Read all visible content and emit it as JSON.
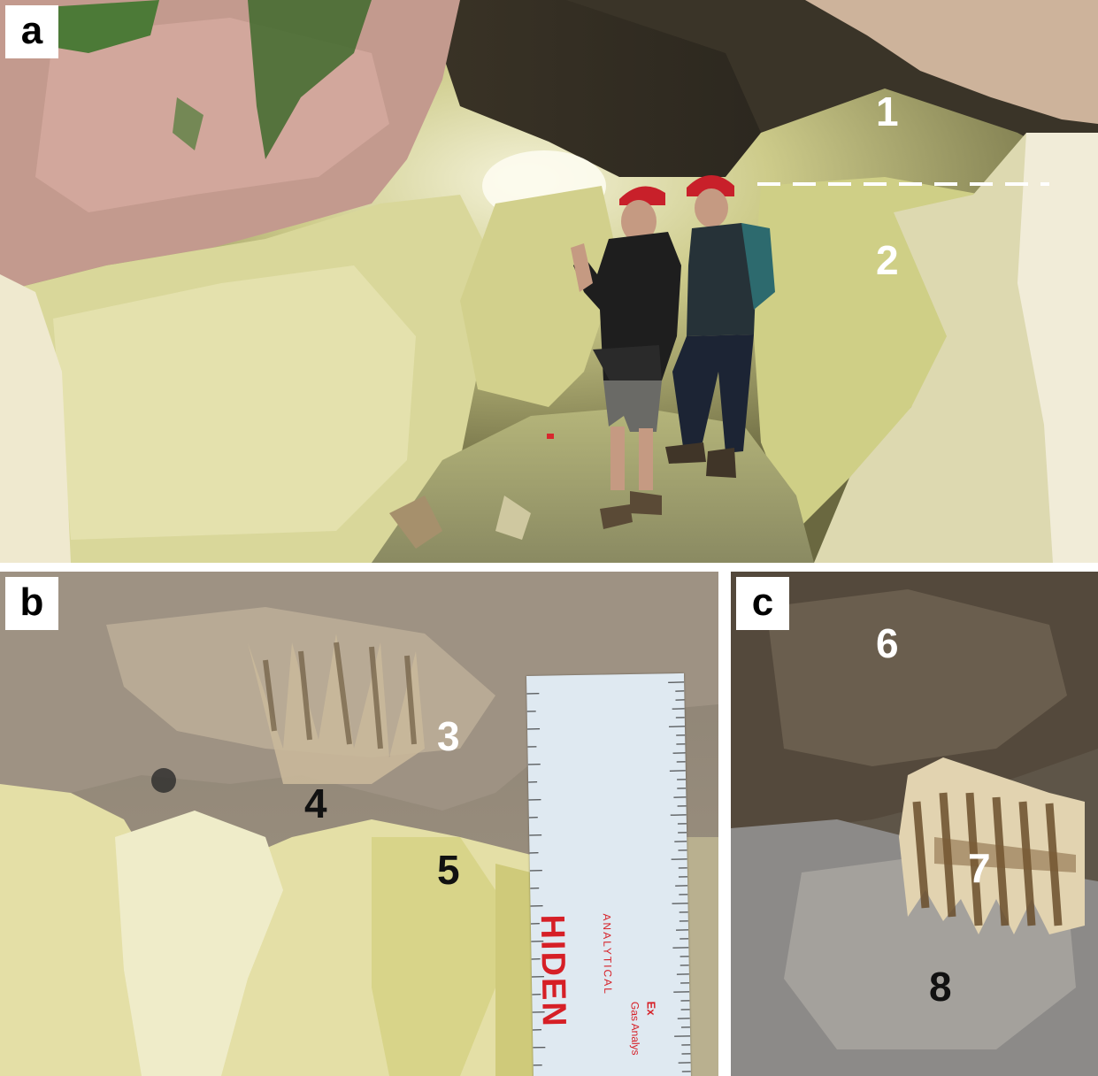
{
  "panels": {
    "a": {
      "letter": "a"
    },
    "b": {
      "letter": "b"
    },
    "c": {
      "letter": "c"
    }
  },
  "labels": {
    "n1": "1",
    "n2": "2",
    "n3": "3",
    "n4": "4",
    "n5": "5",
    "n6": "6",
    "n7": "7",
    "n8": "8"
  },
  "ruler": {
    "brand": "HIDEN",
    "sub": "ANALYTICAL",
    "tagline": "Gas Analys",
    "tagline2": "Ex"
  },
  "colors": {
    "sulfur_yellow": "#d8d590",
    "rock_pink": "#c9998f",
    "moss_green": "#3f6a2d",
    "helmet_red": "#c8202a",
    "ruler_blue": "#d6e6f2",
    "ruler_red": "#d61f26"
  }
}
